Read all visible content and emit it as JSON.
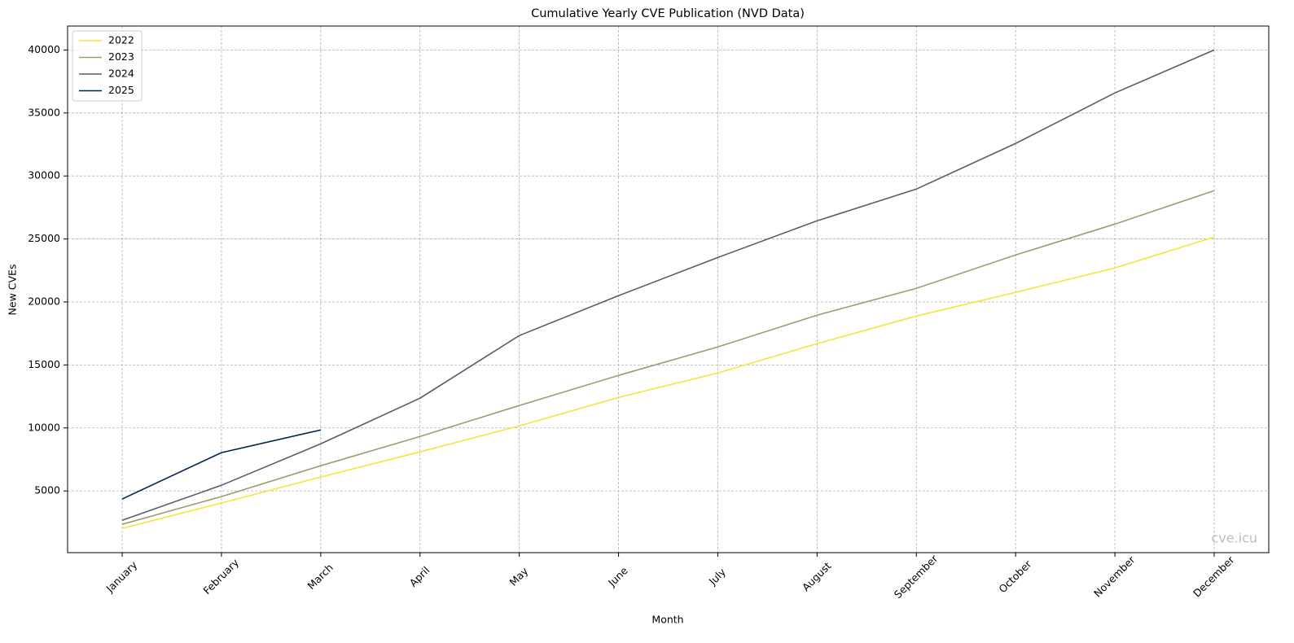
{
  "chart_data": {
    "type": "line",
    "title": "Cumulative Yearly CVE Publication (NVD Data)",
    "x_label": "Month",
    "y_label": "New CVEs",
    "watermark": "cve.icu",
    "categories": [
      "January",
      "February",
      "March",
      "April",
      "May",
      "June",
      "July",
      "August",
      "September",
      "October",
      "November",
      "December"
    ],
    "series": [
      {
        "name": "2022",
        "color": "#f7e43a",
        "values": [
          2030,
          4040,
          6100,
          8100,
          10160,
          12420,
          14360,
          16690,
          18880,
          20760,
          22700,
          25150
        ]
      },
      {
        "name": "2023",
        "color": "#a09a70",
        "values": [
          2350,
          4550,
          7000,
          9320,
          11780,
          14170,
          16430,
          18950,
          21080,
          23730,
          26180,
          28830
        ]
      },
      {
        "name": "2024",
        "color": "#575d6d",
        "values": [
          2670,
          5450,
          8740,
          12360,
          17330,
          20500,
          23530,
          26440,
          28960,
          32580,
          36590,
          40000
        ]
      },
      {
        "name": "2025",
        "color": "#00224e",
        "values": [
          4360,
          8040,
          9840,
          null,
          null,
          null,
          null,
          null,
          null,
          null,
          null,
          null
        ]
      }
    ],
    "ylim": [
      100,
      41900
    ],
    "yticks": [
      5000,
      10000,
      15000,
      20000,
      25000,
      30000,
      35000,
      40000
    ],
    "grid": true,
    "legend": "upper left"
  }
}
